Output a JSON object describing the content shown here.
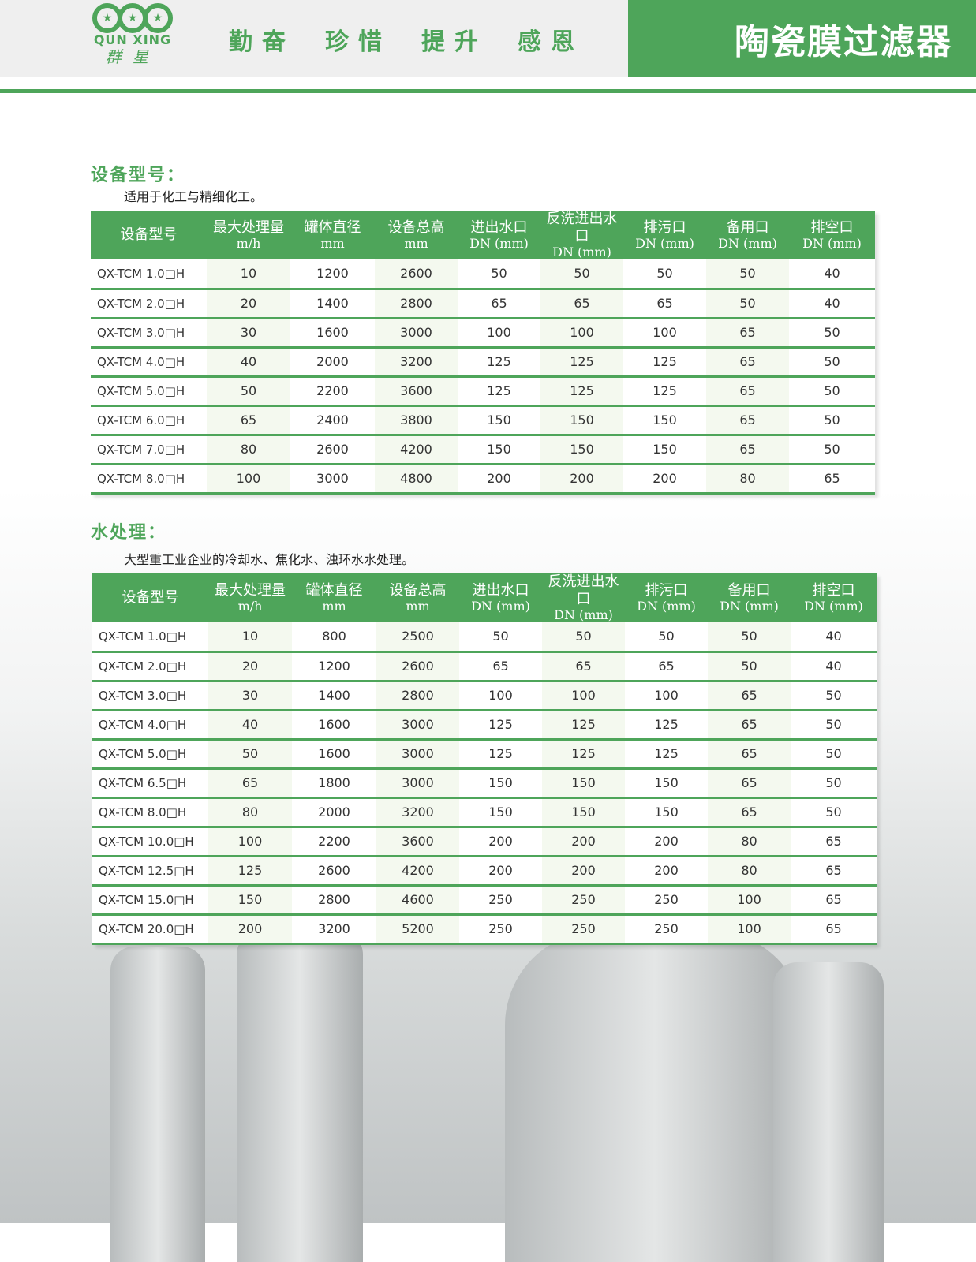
{
  "header": {
    "logo_en": "QUN XING",
    "logo_cn": "群星",
    "motto": [
      "勤奋",
      "珍惜",
      "提升",
      "感恩"
    ],
    "title": "陶瓷膜过滤器"
  },
  "columns": [
    {
      "name": "设备型号",
      "unit": ""
    },
    {
      "name": "最大处理量",
      "unit": "m/h"
    },
    {
      "name": "罐体直径",
      "unit": "mm"
    },
    {
      "name": "设备总高",
      "unit": "mm"
    },
    {
      "name": "进出水口",
      "unit": "DN (mm)"
    },
    {
      "name": "反洗进出水口",
      "unit": "DN (mm)"
    },
    {
      "name": "排污口",
      "unit": "DN (mm)"
    },
    {
      "name": "备用口",
      "unit": "DN (mm)"
    },
    {
      "name": "排空口",
      "unit": "DN (mm)"
    }
  ],
  "sections": [
    {
      "title": "设备型号：",
      "desc": "适用于化工与精细化工。",
      "rows": [
        [
          "QX-TCM 1.0□H",
          "10",
          "1200",
          "2600",
          "50",
          "50",
          "50",
          "50",
          "40"
        ],
        [
          "QX-TCM 2.0□H",
          "20",
          "1400",
          "2800",
          "65",
          "65",
          "65",
          "50",
          "40"
        ],
        [
          "QX-TCM 3.0□H",
          "30",
          "1600",
          "3000",
          "100",
          "100",
          "100",
          "65",
          "50"
        ],
        [
          "QX-TCM 4.0□H",
          "40",
          "2000",
          "3200",
          "125",
          "125",
          "125",
          "65",
          "50"
        ],
        [
          "QX-TCM 5.0□H",
          "50",
          "2200",
          "3600",
          "125",
          "125",
          "125",
          "65",
          "50"
        ],
        [
          "QX-TCM 6.0□H",
          "65",
          "2400",
          "3800",
          "150",
          "150",
          "150",
          "65",
          "50"
        ],
        [
          "QX-TCM 7.0□H",
          "80",
          "2600",
          "4200",
          "150",
          "150",
          "150",
          "65",
          "50"
        ],
        [
          "QX-TCM 8.0□H",
          "100",
          "3000",
          "4800",
          "200",
          "200",
          "200",
          "80",
          "65"
        ]
      ]
    },
    {
      "title": "水处理：",
      "desc": "大型重工业企业的冷却水、焦化水、浊环水水处理。",
      "rows": [
        [
          "QX-TCM 1.0□H",
          "10",
          "800",
          "2500",
          "50",
          "50",
          "50",
          "50",
          "40"
        ],
        [
          "QX-TCM 2.0□H",
          "20",
          "1200",
          "2600",
          "65",
          "65",
          "65",
          "50",
          "40"
        ],
        [
          "QX-TCM 3.0□H",
          "30",
          "1400",
          "2800",
          "100",
          "100",
          "100",
          "65",
          "50"
        ],
        [
          "QX-TCM 4.0□H",
          "40",
          "1600",
          "3000",
          "125",
          "125",
          "125",
          "65",
          "50"
        ],
        [
          "QX-TCM 5.0□H",
          "50",
          "1600",
          "3000",
          "125",
          "125",
          "125",
          "65",
          "50"
        ],
        [
          "QX-TCM 6.5□H",
          "65",
          "1800",
          "3000",
          "150",
          "150",
          "150",
          "65",
          "50"
        ],
        [
          "QX-TCM 8.0□H",
          "80",
          "2000",
          "3200",
          "150",
          "150",
          "150",
          "65",
          "50"
        ],
        [
          "QX-TCM 10.0□H",
          "100",
          "2200",
          "3600",
          "200",
          "200",
          "200",
          "80",
          "65"
        ],
        [
          "QX-TCM 12.5□H",
          "125",
          "2600",
          "4200",
          "200",
          "200",
          "200",
          "80",
          "65"
        ],
        [
          "QX-TCM 15.0□H",
          "150",
          "2800",
          "4600",
          "250",
          "250",
          "250",
          "100",
          "65"
        ],
        [
          "QX-TCM 20.0□H",
          "200",
          "3200",
          "5200",
          "250",
          "250",
          "250",
          "100",
          "65"
        ]
      ]
    }
  ]
}
